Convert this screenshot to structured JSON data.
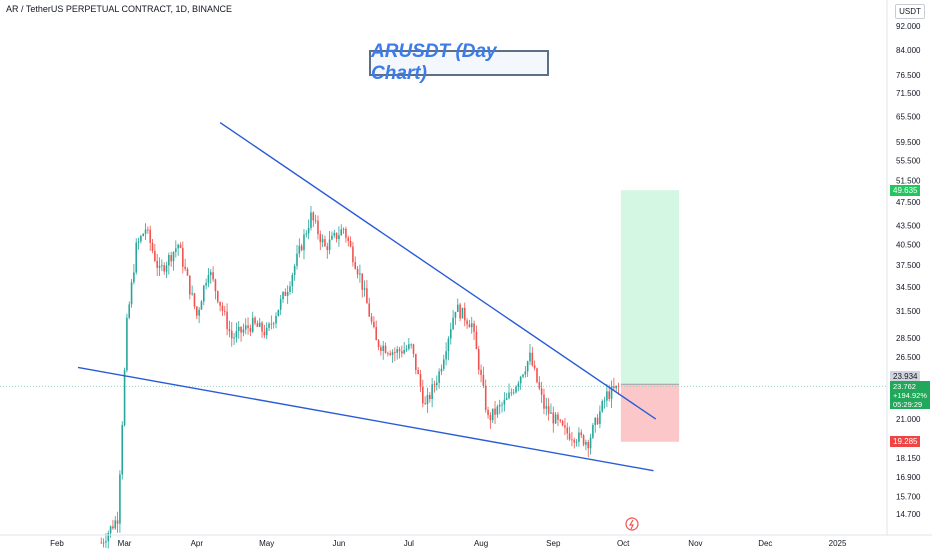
{
  "header": {
    "symbol_title": "AR / TetherUS PERPETUAL CONTRACT, 1D, BINANCE"
  },
  "annotation": {
    "title": "ARUSDT (Day Chart)"
  },
  "price_axis": {
    "unit": "USDT",
    "ticks": [
      "92.000",
      "84.000",
      "76.500",
      "71.500",
      "65.500",
      "59.500",
      "55.500",
      "51.500",
      "47.500",
      "43.500",
      "40.500",
      "37.500",
      "34.500",
      "31.500",
      "28.500",
      "26.500",
      "21.000",
      "18.150",
      "16.900",
      "15.700",
      "14.700"
    ],
    "labels": {
      "target": "49.635",
      "previous_close": "23.934",
      "last_price": "23.762",
      "change_pct": "+194.92%",
      "countdown": "05:29:29",
      "stop": "19.285"
    }
  },
  "colors": {
    "up": "#26a69a",
    "down": "#ef5350",
    "trendline": "#2a5bd7",
    "profit_zone": "#d4f7e3",
    "loss_zone": "#fbc7c9",
    "target_tag": "#22c55e",
    "stop_tag": "#ef4444"
  },
  "chart_data": {
    "type": "candlestick",
    "title": "ARUSDT (Day Chart)",
    "x_axis": {
      "ticks": [
        "Feb",
        "Mar",
        "Apr",
        "May",
        "Jun",
        "Jul",
        "Aug",
        "Sep",
        "Oct",
        "Nov",
        "Dec",
        "2025"
      ]
    },
    "y_axis": {
      "scale": "log",
      "unit": "USDT",
      "range": [
        14,
        97
      ]
    },
    "overview_series": [
      {
        "date": "2024-02-20",
        "close": 13.2
      },
      {
        "date": "2024-02-27",
        "close": 14.5
      },
      {
        "date": "2024-03-02",
        "close": 30.0
      },
      {
        "date": "2024-03-06",
        "close": 40.0
      },
      {
        "date": "2024-03-10",
        "close": 43.0
      },
      {
        "date": "2024-03-16",
        "close": 36.5
      },
      {
        "date": "2024-03-24",
        "close": 40.5
      },
      {
        "date": "2024-04-01",
        "close": 31.0
      },
      {
        "date": "2024-04-06",
        "close": 37.0
      },
      {
        "date": "2024-04-16",
        "close": 28.5
      },
      {
        "date": "2024-04-25",
        "close": 30.0
      },
      {
        "date": "2024-05-01",
        "close": 29.0
      },
      {
        "date": "2024-05-10",
        "close": 34.5
      },
      {
        "date": "2024-05-20",
        "close": 45.0
      },
      {
        "date": "2024-05-26",
        "close": 40.0
      },
      {
        "date": "2024-06-03",
        "close": 43.0
      },
      {
        "date": "2024-06-10",
        "close": 36.0
      },
      {
        "date": "2024-06-17",
        "close": 28.0
      },
      {
        "date": "2024-06-25",
        "close": 27.0
      },
      {
        "date": "2024-07-02",
        "close": 27.5
      },
      {
        "date": "2024-07-08",
        "close": 22.0
      },
      {
        "date": "2024-07-14",
        "close": 25.0
      },
      {
        "date": "2024-07-21",
        "close": 32.0
      },
      {
        "date": "2024-07-28",
        "close": 30.0
      },
      {
        "date": "2024-08-04",
        "close": 21.0
      },
      {
        "date": "2024-08-12",
        "close": 22.5
      },
      {
        "date": "2024-08-22",
        "close": 26.5
      },
      {
        "date": "2024-08-28",
        "close": 22.0
      },
      {
        "date": "2024-09-06",
        "close": 20.0
      },
      {
        "date": "2024-09-16",
        "close": 19.3
      },
      {
        "date": "2024-09-24",
        "close": 23.0
      },
      {
        "date": "2024-09-30",
        "close": 23.762
      }
    ],
    "trendlines": [
      {
        "name": "descending-resistance",
        "from": {
          "date": "2024-04-11",
          "price": 64.0
        },
        "to": {
          "date": "2024-10-15",
          "price": 21.0
        }
      },
      {
        "name": "descending-support",
        "from": {
          "date": "2024-02-10",
          "price": 25.5
        },
        "to": {
          "date": "2024-10-14",
          "price": 17.3
        }
      }
    ],
    "position": {
      "entry": 23.934,
      "target": 49.635,
      "stop": 19.285,
      "start_date": "2024-09-30",
      "end_date": "2024-10-25"
    },
    "price_lines": {
      "previous_close": 23.934,
      "last": 23.762
    },
    "grid": false
  }
}
